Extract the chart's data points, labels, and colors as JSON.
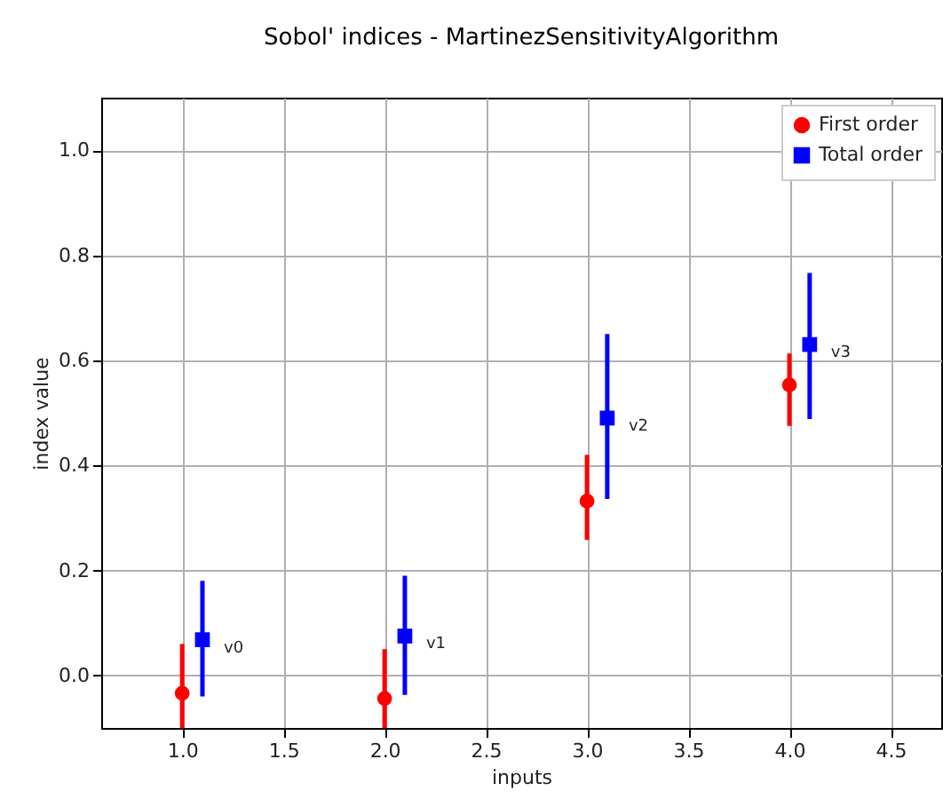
{
  "chart_data": {
    "type": "scatter",
    "title": "Sobol' indices - MartinezSensitivityAlgorithm",
    "xlabel": "inputs",
    "ylabel": "index value",
    "xlim": [
      0.6,
      4.75
    ],
    "ylim": [
      -0.1,
      1.1
    ],
    "xticks": [
      {
        "value": 1,
        "label": "1.0"
      },
      {
        "value": 1.5,
        "label": "1.5"
      },
      {
        "value": 2,
        "label": "2.0"
      },
      {
        "value": 2.5,
        "label": "2.5"
      },
      {
        "value": 3,
        "label": "3.0"
      },
      {
        "value": 3.5,
        "label": "3.5"
      },
      {
        "value": 4,
        "label": "4.0"
      },
      {
        "value": 4.5,
        "label": "4.5"
      }
    ],
    "yticks": [
      {
        "value": 0,
        "label": "0.0"
      },
      {
        "value": 0.2,
        "label": "0.2"
      },
      {
        "value": 0.4,
        "label": "0.4"
      },
      {
        "value": 0.6,
        "label": "0.6"
      },
      {
        "value": 0.8,
        "label": "0.8"
      },
      {
        "value": 1,
        "label": "1.0"
      }
    ],
    "series": [
      {
        "name": "First order",
        "color": "#ff0000",
        "marker": "circle",
        "x": [
          1,
          2,
          3,
          4
        ],
        "values": [
          -0.034,
          -0.044,
          0.332,
          0.553
        ],
        "errors": [
          [
            -0.1,
            0.06
          ],
          [
            -0.1,
            0.05
          ],
          [
            0.258,
            0.42
          ],
          [
            0.475,
            0.613
          ]
        ]
      },
      {
        "name": "Total order",
        "color": "#0000ff",
        "marker": "square",
        "x": [
          1.1,
          2.1,
          3.1,
          4.1
        ],
        "values": [
          0.068,
          0.075,
          0.49,
          0.63
        ],
        "errors": [
          [
            -0.04,
            0.18
          ],
          [
            -0.037,
            0.19
          ],
          [
            0.336,
            0.65
          ],
          [
            0.488,
            0.766
          ]
        ]
      }
    ],
    "annotations": [
      "v0",
      "v1",
      "v2",
      "v3"
    ],
    "grid": true,
    "legend": "top right"
  }
}
